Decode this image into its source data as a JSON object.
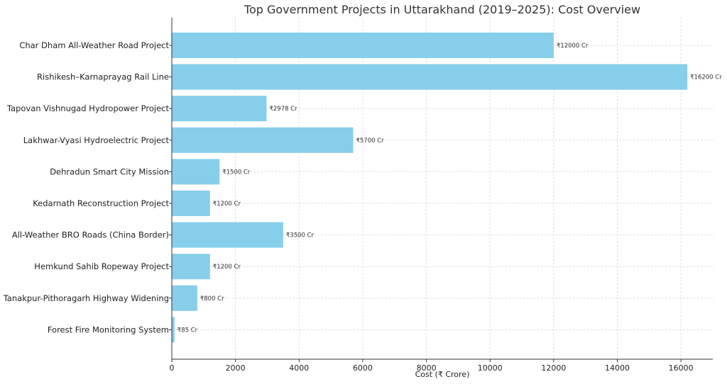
{
  "chart_data": {
    "type": "bar",
    "orientation": "horizontal",
    "title": "Top Government Projects in Uttarakhand (2019–2025): Cost Overview",
    "xlabel": "Cost (₹ Crore)",
    "ylabel": "",
    "xlim": [
      0,
      17000
    ],
    "x_ticks": [
      0,
      2000,
      4000,
      6000,
      8000,
      10000,
      12000,
      14000,
      16000
    ],
    "grid": true,
    "bar_color": "#87ceeb",
    "categories": [
      "Char Dham All-Weather Road Project",
      "Rishikesh–Karnaprayag Rail Line",
      "Tapovan Vishnugad Hydropower Project",
      "Lakhwar-Vyasi Hydroelectric Project",
      "Dehradun Smart City Mission",
      "Kedarnath Reconstruction Project",
      "All-Weather BRO Roads (China Border)",
      "Hemkund Sahib Ropeway Project",
      "Tanakpur-Pithoragarh Highway Widening",
      "Forest Fire Monitoring System"
    ],
    "values": [
      12000,
      16200,
      2978,
      5700,
      1500,
      1200,
      3500,
      1200,
      800,
      85
    ],
    "data_labels": [
      "₹12000 Cr",
      "₹16200 Cr",
      "₹2978 Cr",
      "₹5700 Cr",
      "₹1500 Cr",
      "₹1200 Cr",
      "₹3500 Cr",
      "₹1200 Cr",
      "₹800 Cr",
      "₹85 Cr"
    ]
  }
}
